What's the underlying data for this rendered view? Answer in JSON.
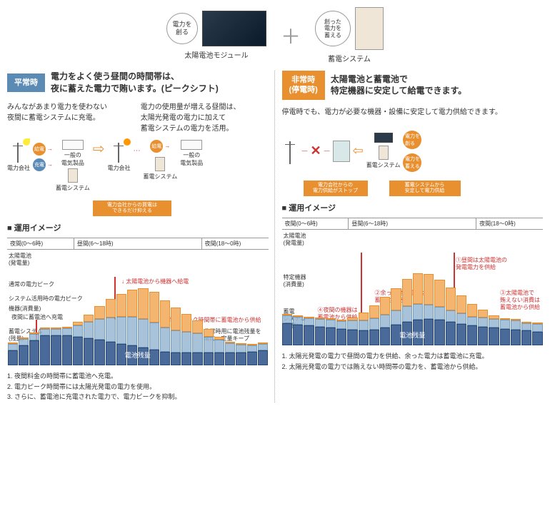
{
  "top": {
    "bubble1": "電力を\n創る",
    "label1": "太陽電池モジュール",
    "bubble2": "創った\n電力を\n蓄える",
    "label2": "蓄電システム"
  },
  "left": {
    "badge": "平常時",
    "title": "電力をよく使う昼間の時間帯は、\n夜に蓄えた電力で賄います。(ピークシフト)",
    "desc1": "みんながあまり電力を使わない\n夜間に蓄電システムに充電。",
    "desc2": "電力の使用量が増える昼間は、\n太陽光発電の電力に加えて\n蓄電システムの電力を活用。",
    "flow": {
      "denryoku": "電力会社",
      "chikuden": "蓄電システム",
      "kyuden": "給電",
      "juden": "充電",
      "ippan": "一般の\n電気製品",
      "callout": "電力会社からの買電は\nできるだけ抑える"
    },
    "chart_title": "運用イメージ",
    "time": {
      "t1": "夜間(0〜6時)",
      "t2": "昼間(6〜18時)",
      "t3": "夜間(18〜0時)"
    },
    "axis": {
      "solar": "太陽電池\n(発電量)",
      "peak1": "通常の電力ピーク",
      "peak2": "システム活用時の電力ピーク",
      "kiki": "機器(消費量)",
      "yakan": "夜間に蓄電池へ充電",
      "chikuden": "蓄電システム\n(残量)",
      "ann1": "太陽電池から機器へ給電",
      "ann2": "電力ピーク時間帯に蓄電池から供給",
      "ann3": "非常時用に電池残量を\n常に一定量キープ",
      "batt": "電池残量"
    },
    "solar_bars": [
      0,
      0,
      0,
      0,
      0,
      0,
      5,
      12,
      20,
      28,
      35,
      42,
      48,
      48,
      42,
      35,
      28,
      20,
      12,
      5,
      0,
      0,
      0,
      0
    ],
    "cons_bars": [
      10,
      10,
      10,
      10,
      10,
      12,
      18,
      25,
      32,
      38,
      42,
      45,
      45,
      42,
      38,
      35,
      32,
      30,
      25,
      20,
      15,
      12,
      10,
      10
    ],
    "batt_bars": [
      30,
      40,
      50,
      60,
      60,
      60,
      58,
      55,
      52,
      48,
      44,
      40,
      36,
      32,
      28,
      26,
      26,
      26,
      26,
      26,
      26,
      26,
      28,
      30
    ],
    "notes": [
      "1. 夜間料金の時間帯に蓄電池へ充電。",
      "2. 電力ピーク時間帯には太陽光発電の電力を使用。",
      "3. さらに、蓄電池に充電された電力で、電力ピークを抑制。"
    ]
  },
  "right": {
    "badge": "非常時\n(停電時)",
    "title": "太陽電池と蓄電池で\n特定機器に安定して給電できます。",
    "desc": "停電時でも、電力が必要な機器・設備に安定して電力供給できます。",
    "flow": {
      "stop": "電力会社からの\n電力供給がストップ",
      "supply": "蓄電システムから\n安定して電力供給",
      "chikuden": "蓄電システム",
      "tsukuru": "電力を\n創る",
      "takuwaeru": "電力を\n蓄える"
    },
    "chart_title": "運用イメージ",
    "axis": {
      "solar": "太陽電池\n(発電量)",
      "tokutei": "特定機器\n(消費量)",
      "chikuden": "蓄電\nシステム\n(残量)",
      "ann1": "①昼間は太陽電池の\n発電電力を供給",
      "ann2": "②余った発電電力は\n蓄電池に充電",
      "ann3": "③太陽電池で\n賄えない消費は\n蓄電池から供給",
      "ann4": "④夜間の機器は\n蓄電池から供給",
      "batt": "電池残量"
    },
    "solar_bars": [
      0,
      0,
      0,
      0,
      0,
      0,
      5,
      12,
      20,
      28,
      35,
      42,
      48,
      48,
      42,
      35,
      28,
      20,
      12,
      5,
      0,
      0,
      0,
      0
    ],
    "cons_bars": [
      12,
      12,
      12,
      12,
      12,
      12,
      14,
      16,
      18,
      20,
      22,
      24,
      24,
      22,
      20,
      18,
      16,
      14,
      14,
      14,
      14,
      14,
      12,
      12
    ],
    "batt_bars": [
      45,
      42,
      40,
      38,
      36,
      34,
      32,
      30,
      32,
      36,
      42,
      48,
      52,
      54,
      52,
      48,
      44,
      40,
      38,
      36,
      34,
      32,
      30,
      28
    ],
    "notes": [
      "1. 太陽光発電の電力で昼間の電力を供給、余った電力は蓄電池に充電。",
      "2. 太陽光発電の電力では賄えない時間帯の電力を、蓄電池から供給。"
    ]
  },
  "colors": {
    "blue": "#5b8bb5",
    "orange": "#e89030",
    "navy": "#4a6a9a",
    "solar_fill": "#f4b570",
    "cons_fill": "#9ab8d4",
    "red": "#cc3333"
  }
}
